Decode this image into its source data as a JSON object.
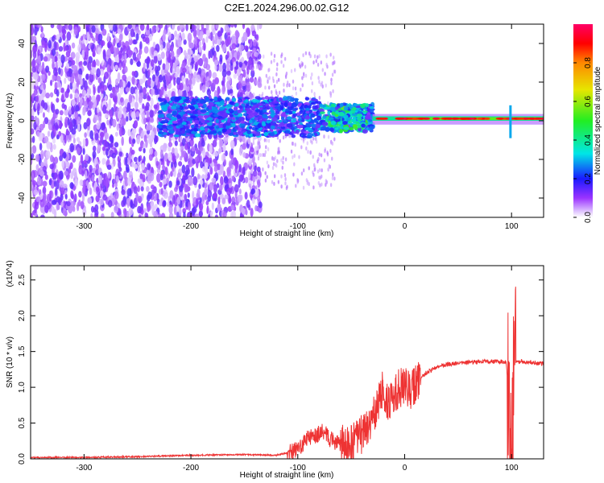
{
  "title": "C2E1.2024.296.00.02.G12",
  "colors": {
    "snr_line": "#ee3333",
    "spectrogram_base": "#7a2be0",
    "axis": "#000000"
  },
  "chart_data": [
    {
      "type": "heatmap",
      "title": "C2E1.2024.296.00.02.G12",
      "xlabel": "Height of straight line (km)",
      "ylabel": "Frequency (Hz)",
      "xlim": [
        -350,
        130
      ],
      "ylim": [
        -50,
        50
      ],
      "x_ticks": [
        -300,
        -200,
        -100,
        0,
        100
      ],
      "y_ticks": [
        -40,
        -20,
        0,
        20,
        40
      ],
      "x_tick_labels": [
        "-300",
        "-200",
        "-100",
        "0",
        "100"
      ],
      "y_tick_labels": [
        "-40",
        "-20",
        "0",
        "20",
        "40"
      ],
      "colorbar": {
        "label": "Normalized spectral amplitude",
        "range": [
          0,
          1
        ],
        "ticks": [
          0.0,
          0.2,
          0.4,
          0.6,
          0.8
        ],
        "tick_labels": [
          "0.0",
          "0.2",
          "0.4",
          "0.6",
          "0.8"
        ],
        "colormap": "rainbow"
      },
      "features": [
        {
          "x_range": [
            -350,
            -140
          ],
          "freq_range": [
            -50,
            50
          ],
          "amplitude": 0.1
        },
        {
          "x_range": [
            -230,
            -30
          ],
          "freq_range": [
            -10,
            10
          ],
          "amplitude": 0.3
        },
        {
          "x_range": [
            -80,
            -30
          ],
          "freq_range": [
            -5,
            6
          ],
          "amplitude": 0.5
        },
        {
          "x_range": [
            -30,
            130
          ],
          "freq_range": [
            0,
            2
          ],
          "amplitude": 0.9
        }
      ]
    },
    {
      "type": "line",
      "xlabel": "Height of straight line (km)",
      "ylabel": "SNR (10 * v/v)",
      "y_multiplier": "(x10^4)",
      "xlim": [
        -350,
        130
      ],
      "ylim": [
        0,
        2.7
      ],
      "x_ticks": [
        -300,
        -200,
        -100,
        0,
        100
      ],
      "x_tick_labels": [
        "-300",
        "-200",
        "-100",
        "0",
        "100"
      ],
      "y_ticks": [
        0.0,
        0.5,
        1.0,
        1.5,
        2.0,
        2.5
      ],
      "y_tick_labels": [
        "0.0",
        "0.5",
        "1.0",
        "1.5",
        "2.0",
        "2.5"
      ],
      "x": [
        -350,
        -300,
        -250,
        -200,
        -150,
        -120,
        -100,
        -90,
        -80,
        -75,
        -70,
        -60,
        -50,
        -40,
        -30,
        -25,
        -20,
        -15,
        -10,
        -5,
        0,
        5,
        10,
        20,
        30,
        40,
        60,
        80,
        95,
        100,
        103,
        110,
        130
      ],
      "y": [
        0.02,
        0.02,
        0.03,
        0.05,
        0.06,
        0.05,
        0.12,
        0.3,
        0.35,
        0.4,
        0.28,
        0.2,
        0.2,
        0.35,
        0.55,
        0.75,
        1.0,
        0.75,
        0.85,
        1.0,
        1.0,
        0.95,
        1.05,
        1.2,
        1.28,
        1.32,
        1.35,
        1.36,
        1.36,
        0.3,
        1.35,
        1.36,
        1.33
      ]
    }
  ]
}
